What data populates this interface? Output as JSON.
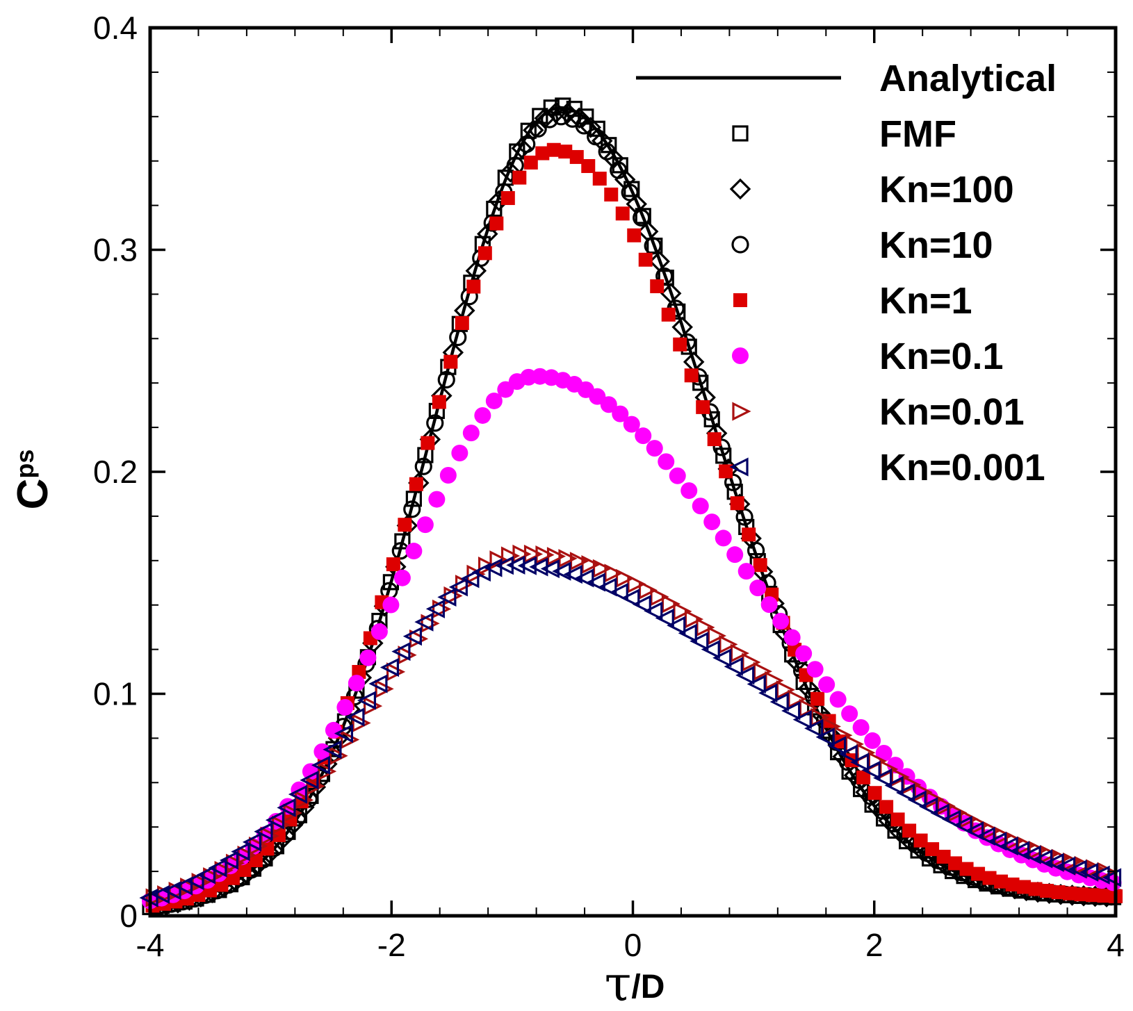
{
  "chart_data": {
    "type": "scatter",
    "title": "",
    "xlabel": {
      "main": "τ",
      "sub": "/D"
    },
    "ylabel": {
      "main": "C",
      "sub": "ps"
    },
    "xlim": [
      -4,
      4
    ],
    "ylim": [
      0,
      0.4
    ],
    "x_ticks": [
      "-4",
      "-2",
      "0",
      "2",
      "4"
    ],
    "y_ticks": [
      "0",
      "0.1",
      "0.2",
      "0.3",
      "0.4"
    ],
    "grid": false,
    "legend_position": "top-right",
    "colors": {
      "black": "#000000",
      "red": "#dd0000",
      "magenta": "#ff00ff",
      "darkred": "#aa1111",
      "navy": "#000066"
    },
    "series": [
      {
        "name": "Analytical",
        "marker": "line",
        "color": "#000000",
        "peak": {
          "x": -0.6,
          "y": 0.364
        },
        "tail_right": 0.008,
        "tail_left": 0.002
      },
      {
        "name": "FMF",
        "marker": "square",
        "color": "#000000",
        "peak": {
          "x": -0.6,
          "y": 0.365
        },
        "tail_right": 0.008,
        "tail_left": 0.002
      },
      {
        "name": "Kn=100",
        "marker": "diamond",
        "color": "#000000",
        "peak": {
          "x": -0.6,
          "y": 0.362
        },
        "tail_right": 0.008,
        "tail_left": 0.002
      },
      {
        "name": "Kn=10",
        "marker": "circle-open",
        "color": "#000000",
        "peak": {
          "x": -0.6,
          "y": 0.36
        },
        "tail_right": 0.008,
        "tail_left": 0.002
      },
      {
        "name": "Kn=1",
        "marker": "square-filled",
        "color": "#dd0000",
        "peak": {
          "x": -0.65,
          "y": 0.345
        },
        "tail_right": 0.008,
        "tail_left": 0.002
      },
      {
        "name": "Kn=0.1",
        "marker": "circle-filled",
        "color": "#ff00ff",
        "peak": {
          "x": -0.8,
          "y": 0.243
        },
        "tail_right": 0.008,
        "tail_left": 0.002
      },
      {
        "name": "Kn=0.01",
        "marker": "triangle-right",
        "color": "#aa1111",
        "peak": {
          "x": -0.9,
          "y": 0.163
        },
        "tail_right": 0.007,
        "tail_left": 0.002
      },
      {
        "name": "Kn=0.001",
        "marker": "triangle-left",
        "color": "#000066",
        "peak": {
          "x": -1.0,
          "y": 0.158
        },
        "tail_right": 0.006,
        "tail_left": 0.001
      }
    ]
  }
}
